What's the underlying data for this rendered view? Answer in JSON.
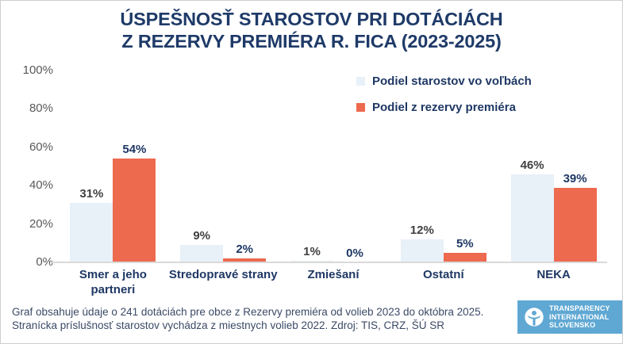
{
  "title": {
    "line1": "ÚSPEŠNOSŤ STAROSTOV PRI DOTÁCIÁCH",
    "line2": "Z REZERVY PREMIÉRA R. FICA (2023-2025)"
  },
  "legend": {
    "items": [
      {
        "label": "Podiel starostov vo voľbách",
        "color": "#e8f0f8"
      },
      {
        "label": "Podiel z rezervy premiéra",
        "color": "#ed6a4f"
      }
    ]
  },
  "chart_data": {
    "type": "bar",
    "title": "ÚSPEŠNOSŤ STAROSTOV PRI DOTÁCIÁCH Z REZERVY PREMIÉRA R. FICA (2023-2025)",
    "categories": [
      "Smer a jeho partneri",
      "Stredopravé strany",
      "Zmiešaní",
      "Ostatní",
      "NEKA"
    ],
    "series": [
      {
        "name": "Podiel starostov vo voľbách",
        "values": [
          31,
          9,
          1,
          12,
          46
        ],
        "color": "#e8f0f8",
        "label_color": "#404040"
      },
      {
        "name": "Podiel z rezervy premiéra",
        "values": [
          54,
          2,
          0,
          5,
          39
        ],
        "color": "#ed6a4f",
        "label_color": "#1f3864"
      }
    ],
    "value_suffix": "%",
    "yticks": [
      "100%",
      "80%",
      "60%",
      "40%",
      "20%",
      "0%"
    ],
    "ytick_values": [
      100,
      80,
      60,
      40,
      20,
      0
    ],
    "ylim": [
      0,
      100
    ],
    "grid": false,
    "legend_position": "top-right"
  },
  "footer": {
    "line1": "Graf obsahuje údaje o 241 dotáciách pre obce z Rezervy premiéra od volieb 2023 do októbra 2025.",
    "line2": "Stranícka príslušnosť starostov vychádza z miestnych volieb 2022. Zdroj: TIS, CRZ, ŠÚ SR"
  },
  "logo": {
    "line1": "TRANSPARENCY",
    "line2": "INTERNATIONAL",
    "line3": "SLOVENSKO",
    "background": "#5fa8d3"
  },
  "colors": {
    "title_navy": "#1e3a68",
    "axis_line": "#d9d9d9",
    "tick_text": "#595959",
    "frame_border": "#cfcfcf"
  }
}
